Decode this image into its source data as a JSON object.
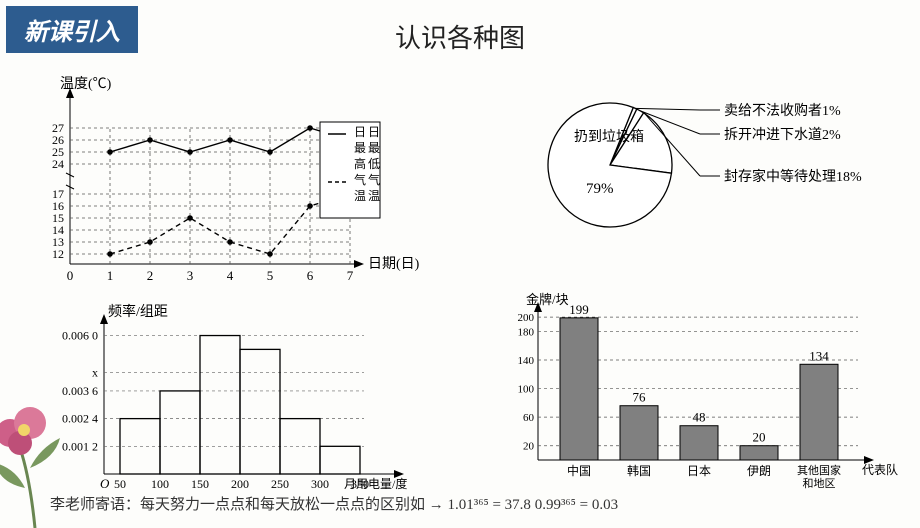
{
  "badge": "新课引入",
  "title": "认识各种图",
  "footer": {
    "prefix": "李老师寄语：每天努力一点点和每天放松一点点的区别如 → ",
    "eq1": "1.01³⁶⁵ = 37.8",
    "gap": "    ",
    "eq2": "0.99³⁶⁵ = 0.03"
  },
  "line_chart": {
    "type": "line",
    "y_label": "温度(℃)",
    "x_label": "日期(日)",
    "legend_high": "日最高气温",
    "legend_low": "日最低气温",
    "x_ticks": [
      0,
      1,
      2,
      3,
      4,
      5,
      6,
      7
    ],
    "y_ticks": [
      12,
      13,
      14,
      15,
      16,
      17,
      24,
      25,
      26,
      27
    ],
    "series_high": [
      25,
      26,
      25,
      26,
      25,
      27,
      26
    ],
    "series_low": [
      12,
      13,
      15,
      13,
      12,
      16,
      17
    ],
    "line_color": "#000000",
    "grid_color": "#555555",
    "background": "#ffffff"
  },
  "pie_chart": {
    "type": "pie",
    "slices": [
      {
        "label": "扔到垃圾箱",
        "value": 79,
        "show": "79%"
      },
      {
        "label": "封存家中等待处理",
        "value": 18,
        "show": "封存家中等待处理18%"
      },
      {
        "label": "拆开冲进下水道",
        "value": 2,
        "show": "拆开冲进下水道2%"
      },
      {
        "label": "卖给不法收购者",
        "value": 1,
        "show": "卖给不法收购者1%"
      }
    ],
    "stroke": "#000000",
    "fill": "#ffffff"
  },
  "hist_chart": {
    "type": "histogram",
    "y_label": "频率/组距",
    "x_label": "月用电量/度",
    "y_ticks": [
      "0.001 2",
      "0.002 4",
      "0.003 6",
      "x",
      "0.006 0"
    ],
    "y_values": [
      0.0012,
      0.0024,
      0.0036,
      0.0044,
      0.006
    ],
    "x_ticks": [
      50,
      100,
      150,
      200,
      250,
      300,
      350
    ],
    "bars": [
      0.0024,
      0.0036,
      0.006,
      0.0054,
      0.0024,
      0.0012
    ],
    "bar_color": "#000000",
    "background": "#ffffff"
  },
  "bar_chart": {
    "type": "bar",
    "y_label": "金牌/块",
    "x_label": "代表队",
    "categories": [
      "中国",
      "韩国",
      "日本",
      "伊朗",
      "其他国家和地区"
    ],
    "values": [
      199,
      76,
      48,
      20,
      134
    ],
    "y_ticks": [
      20,
      60,
      100,
      140,
      180,
      200
    ],
    "bar_fill": "#808080",
    "bar_stroke": "#000000",
    "grid_color": "#555555"
  }
}
